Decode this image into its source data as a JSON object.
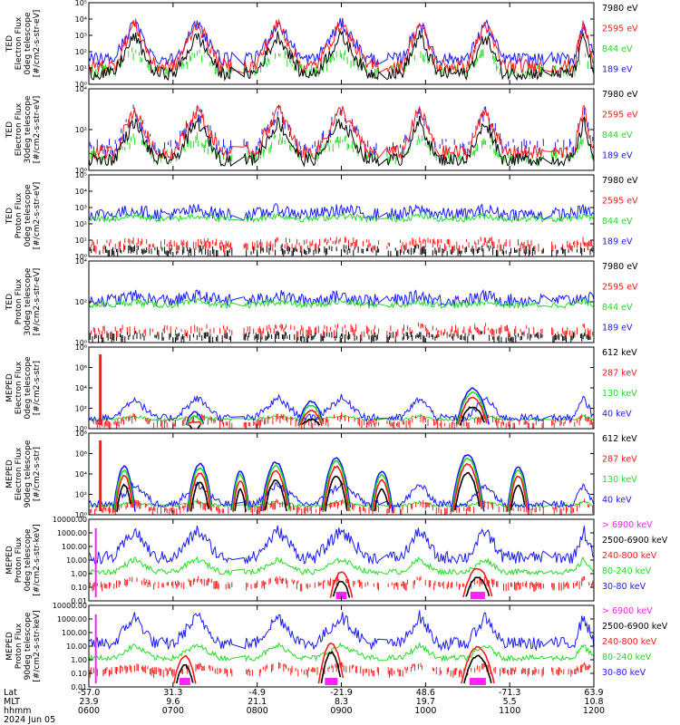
{
  "colors": {
    "blue": "#1a1aff",
    "green": "#22dd22",
    "red": "#ff1a1a",
    "black": "#000000",
    "magenta": "#ff22ff"
  },
  "chart_data": [
    {
      "type": "line",
      "ylabel": [
        "TED",
        "Electron Flux",
        "0deg telescope",
        "[#/cm2-s-str-eV]"
      ],
      "yscale": "log",
      "yticks": [
        "10⁰",
        "10¹",
        "10²",
        "10³",
        "10⁴",
        "10⁵"
      ],
      "legend": [
        {
          "label": "7980 eV",
          "color": "black"
        },
        {
          "label": "2595 eV",
          "color": "red"
        },
        {
          "label": "844 eV",
          "color": "green"
        },
        {
          "label": "189 eV",
          "color": "blue"
        }
      ]
    },
    {
      "type": "line",
      "ylabel": [
        "TED",
        "Electron Flux",
        "30deg telescope",
        "[#/cm2-s-str-eV]"
      ],
      "yscale": "log",
      "yticks": [
        "10⁰",
        "10²",
        "10⁴"
      ],
      "legend": [
        {
          "label": "7980 eV",
          "color": "black"
        },
        {
          "label": "2595 eV",
          "color": "red"
        },
        {
          "label": "844 eV",
          "color": "green"
        },
        {
          "label": "189 eV",
          "color": "blue"
        }
      ]
    },
    {
      "type": "line",
      "ylabel": [
        "TED",
        "Proton Flux",
        "0deg telescope",
        "[#/cm2-s-str-eV]"
      ],
      "yscale": "log",
      "yticks": [
        "10⁰",
        "10¹",
        "10²",
        "10³",
        "10⁴",
        "10⁵"
      ],
      "legend": [
        {
          "label": "7980 eV",
          "color": "black"
        },
        {
          "label": "2595 eV",
          "color": "red"
        },
        {
          "label": "844 eV",
          "color": "green"
        },
        {
          "label": "189 eV",
          "color": "blue"
        }
      ]
    },
    {
      "type": "line",
      "ylabel": [
        "TED",
        "Proton Flux",
        "30deg telescope",
        "[#/cm2-s-str-eV]"
      ],
      "yscale": "log",
      "yticks": [
        "10⁰",
        "10²",
        "10⁴"
      ],
      "legend": [
        {
          "label": "7980 eV",
          "color": "black"
        },
        {
          "label": "2595 eV",
          "color": "red"
        },
        {
          "label": "844 eV",
          "color": "green"
        },
        {
          "label": "189 eV",
          "color": "blue"
        }
      ]
    },
    {
      "type": "line",
      "ylabel": [
        "MEPED",
        "Electron Flux",
        "0deg telescope",
        "[#/cm2-s-str]"
      ],
      "yscale": "log",
      "yticks": [
        "10⁰",
        "10²",
        "10⁴",
        "10⁶",
        "10⁸"
      ],
      "legend": [
        {
          "label": "612 keV",
          "color": "black"
        },
        {
          "label": "287 keV",
          "color": "red"
        },
        {
          "label": "130 keV",
          "color": "green"
        },
        {
          "label": "40 keV",
          "color": "blue"
        }
      ]
    },
    {
      "type": "line",
      "ylabel": [
        "MEPED",
        "Electron Flux",
        "90deg telescope",
        "[#/cm2-s-str]"
      ],
      "yscale": "log",
      "yticks": [
        "10⁰",
        "10²",
        "10⁴",
        "10⁶",
        "10⁸"
      ],
      "legend": [
        {
          "label": "612 keV",
          "color": "black"
        },
        {
          "label": "287 keV",
          "color": "red"
        },
        {
          "label": "130 keV",
          "color": "green"
        },
        {
          "label": "40 keV",
          "color": "blue"
        }
      ]
    },
    {
      "type": "line",
      "ylabel": [
        "MEPED",
        "Proton Flux",
        "0deg telescope",
        "[#/cm2-s-str-keV]"
      ],
      "yscale": "log",
      "yticks": [
        "0.01",
        "0.10",
        "1.00",
        "10.00",
        "100.00",
        "1000.00",
        "10000.00"
      ],
      "legend": [
        {
          "label": "> 6900 keV",
          "color": "magenta"
        },
        {
          "label": "2500-6900 keV",
          "color": "black"
        },
        {
          "label": "240-800 keV",
          "color": "red"
        },
        {
          "label": "80-240 keV",
          "color": "green"
        },
        {
          "label": "30-80 keV",
          "color": "blue"
        }
      ]
    },
    {
      "type": "line",
      "ylabel": [
        "MEPED",
        "Proton Flux",
        "90deg telescope",
        "[#/cm2-s-str-keV]"
      ],
      "yscale": "log",
      "yticks": [
        "0.01",
        "0.10",
        "1.00",
        "10.00",
        "100.00",
        "1000.00",
        "10000.00"
      ],
      "legend": [
        {
          "label": "> 6900 keV",
          "color": "magenta"
        },
        {
          "label": "2500-6900 keV",
          "color": "black"
        },
        {
          "label": "240-800 keV",
          "color": "red"
        },
        {
          "label": "80-240 keV",
          "color": "green"
        },
        {
          "label": "30-80 keV",
          "color": "blue"
        }
      ]
    }
  ],
  "xaxis": {
    "row_labels": [
      "Lat",
      "MLT",
      "hhmm",
      "2024 Jun 05"
    ],
    "ticks": [
      {
        "lat": "-57.0",
        "mlt": "23.9",
        "hhmm": "0600"
      },
      {
        "lat": "31.3",
        "mlt": "9.6",
        "hhmm": "0700"
      },
      {
        "lat": "-4.9",
        "mlt": "21.1",
        "hhmm": "0800"
      },
      {
        "lat": "-21.9",
        "mlt": "8.3",
        "hhmm": "0900"
      },
      {
        "lat": "48.6",
        "mlt": "19.7",
        "hhmm": "1000"
      },
      {
        "lat": "-71.3",
        "mlt": "5.5",
        "hhmm": "1100"
      },
      {
        "lat": "63.9",
        "mlt": "10.8",
        "hhmm": "1200"
      }
    ]
  }
}
